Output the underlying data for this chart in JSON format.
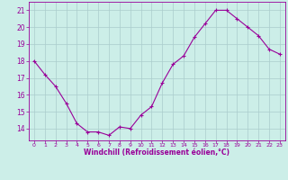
{
  "x": [
    0,
    1,
    2,
    3,
    4,
    5,
    6,
    7,
    8,
    9,
    10,
    11,
    12,
    13,
    14,
    15,
    16,
    17,
    18,
    19,
    20,
    21,
    22,
    23
  ],
  "y": [
    18.0,
    17.2,
    16.5,
    15.5,
    14.3,
    13.8,
    13.8,
    13.6,
    14.1,
    14.0,
    14.8,
    15.3,
    16.7,
    17.8,
    18.3,
    19.4,
    20.2,
    21.0,
    21.0,
    20.5,
    20.0,
    19.5,
    18.7,
    18.4
  ],
  "line_color": "#990099",
  "marker": "+",
  "marker_size": 3,
  "marker_lw": 0.8,
  "line_width": 0.8,
  "bg_color": "#cceee8",
  "grid_color": "#aacccc",
  "xlabel": "Windchill (Refroidissement éolien,°C)",
  "xlabel_color": "#990099",
  "tick_color": "#990099",
  "yticks": [
    14,
    15,
    16,
    17,
    18,
    19,
    20,
    21
  ],
  "xlim": [
    -0.5,
    23.5
  ],
  "ylim": [
    13.3,
    21.5
  ],
  "xtick_fontsize": 4.5,
  "ytick_fontsize": 5.5,
  "xlabel_fontsize": 5.5
}
